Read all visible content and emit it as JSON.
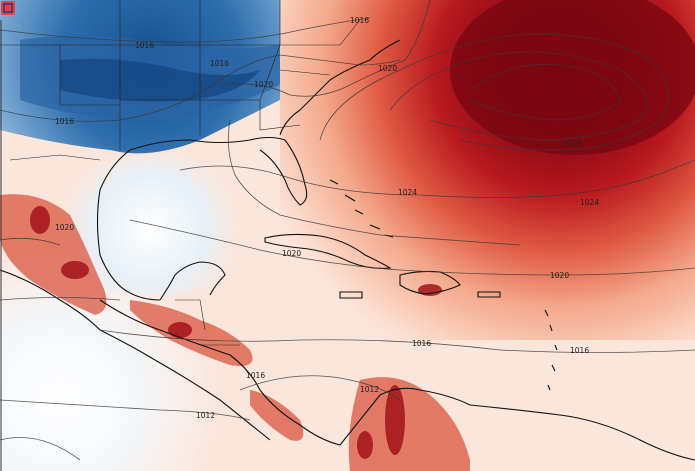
{
  "map": {
    "isobar_labels": [
      {
        "key": "a",
        "text": "1016"
      },
      {
        "key": "b",
        "text": "1016"
      },
      {
        "key": "c",
        "text": "1016"
      },
      {
        "key": "d",
        "text": "1020"
      },
      {
        "key": "e",
        "text": "1020"
      },
      {
        "key": "f",
        "text": "1016"
      },
      {
        "key": "g",
        "text": "1028"
      },
      {
        "key": "h",
        "text": "1024"
      },
      {
        "key": "i",
        "text": "1024"
      },
      {
        "key": "j",
        "text": "1020"
      },
      {
        "key": "k",
        "text": "1020"
      },
      {
        "key": "l",
        "text": "1020"
      },
      {
        "key": "m",
        "text": "1016"
      },
      {
        "key": "n",
        "text": "1016"
      },
      {
        "key": "o",
        "text": "1016"
      },
      {
        "key": "p",
        "text": "1012"
      },
      {
        "key": "q",
        "text": "1012"
      }
    ],
    "colors": {
      "cold_deep": "#1f5b9c",
      "cold_mid": "#5b93c8",
      "cold_light": "#cde0ef",
      "neutral": "#f7f1ee",
      "warm_light": "#f8d3c2",
      "warm_mid": "#e9785d",
      "warm_deep": "#b81a1f",
      "warm_max": "#7a0612"
    },
    "corner_icon": "logo-mark-icon"
  }
}
